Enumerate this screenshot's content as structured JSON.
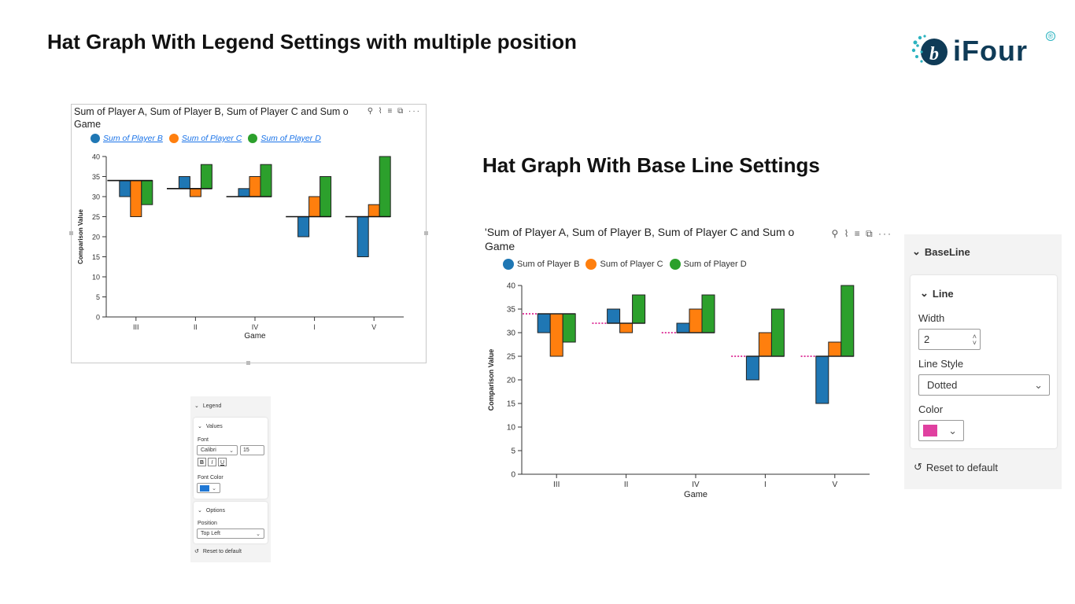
{
  "slide": {
    "title_left": "Hat Graph With Legend Settings with multiple position",
    "title_right": "Hat Graph With Base Line Settings",
    "logo_text": "iFour",
    "logo_mark": "®"
  },
  "visual_header": {
    "title": "Sum of Player A, Sum of Player B, Sum of Player C and Sum of Player D by Game",
    "title_line1": "Sum of Player A, Sum of Player B, Sum of Player C and Sum o",
    "title_line2": "Game",
    "title_prefix_right": "'",
    "icons": "⚲ ⌇ ≡ ⧉ ···"
  },
  "colors": {
    "player_b": "#1f77b4",
    "player_c": "#ff7f0e",
    "player_d": "#2ca02c",
    "baseline_dotted": "#e040a0",
    "legend_link": "#1a73e8"
  },
  "chart_data": [
    {
      "type": "bar",
      "variant": "hat-graph",
      "title": "Sum of Player A, Sum of Player B, Sum of Player C and Sum of Player D by Game",
      "categories": [
        "III",
        "II",
        "IV",
        "I",
        "V"
      ],
      "baseline_series": {
        "name": "Sum of Player A",
        "values": [
          34,
          32,
          30,
          25,
          25
        ],
        "style": "solid"
      },
      "series": [
        {
          "name": "Sum of Player B",
          "values": [
            30,
            35,
            32,
            20,
            15
          ],
          "color": "#1f77b4"
        },
        {
          "name": "Sum of Player C",
          "values": [
            25,
            30,
            35,
            30,
            28
          ],
          "color": "#ff7f0e"
        },
        {
          "name": "Sum of Player D",
          "values": [
            28,
            38,
            38,
            35,
            40
          ],
          "color": "#2ca02c"
        }
      ],
      "xlabel": "Game",
      "ylabel": "Comparison Value",
      "ylim": [
        0,
        40
      ],
      "yticks": [
        0,
        5,
        10,
        15,
        20,
        25,
        30,
        35,
        40
      ],
      "legend": "top-left",
      "grid": false
    },
    {
      "type": "bar",
      "variant": "hat-graph",
      "title": "Sum of Player A, Sum of Player B, Sum of Player C and Sum of Player D by Game",
      "categories": [
        "III",
        "II",
        "IV",
        "I",
        "V"
      ],
      "baseline_series": {
        "name": "Sum of Player A",
        "values": [
          34,
          32,
          30,
          25,
          25
        ],
        "style": "dotted"
      },
      "series": [
        {
          "name": "Sum of Player B",
          "values": [
            30,
            35,
            32,
            20,
            15
          ],
          "color": "#1f77b4"
        },
        {
          "name": "Sum of Player C",
          "values": [
            25,
            30,
            35,
            30,
            28
          ],
          "color": "#ff7f0e"
        },
        {
          "name": "Sum of Player D",
          "values": [
            28,
            38,
            38,
            35,
            40
          ],
          "color": "#2ca02c"
        }
      ],
      "xlabel": "Game",
      "ylabel": "Comparison Value",
      "ylim": [
        0,
        40
      ],
      "yticks": [
        0,
        5,
        10,
        15,
        20,
        25,
        30,
        35,
        40
      ],
      "legend": "top-left",
      "grid": false
    }
  ],
  "legend_panel": {
    "section": "Legend",
    "group": "Values",
    "font_label": "Font",
    "font_value": "Calibri",
    "font_size": "15",
    "bold": "B",
    "italic": "I",
    "underline": "U",
    "font_color_label": "Font Color",
    "font_color": "#1f77d4",
    "options_group": "Options",
    "position_label": "Position",
    "position_value": "Top Left",
    "reset": "Reset to default"
  },
  "baseline_panel": {
    "section": "BaseLine",
    "group": "Line",
    "width_label": "Width",
    "width_value": "2",
    "line_style_label": "Line Style",
    "line_style_value": "Dotted",
    "color_label": "Color",
    "color_value": "#e040a0",
    "reset": "Reset to default"
  }
}
